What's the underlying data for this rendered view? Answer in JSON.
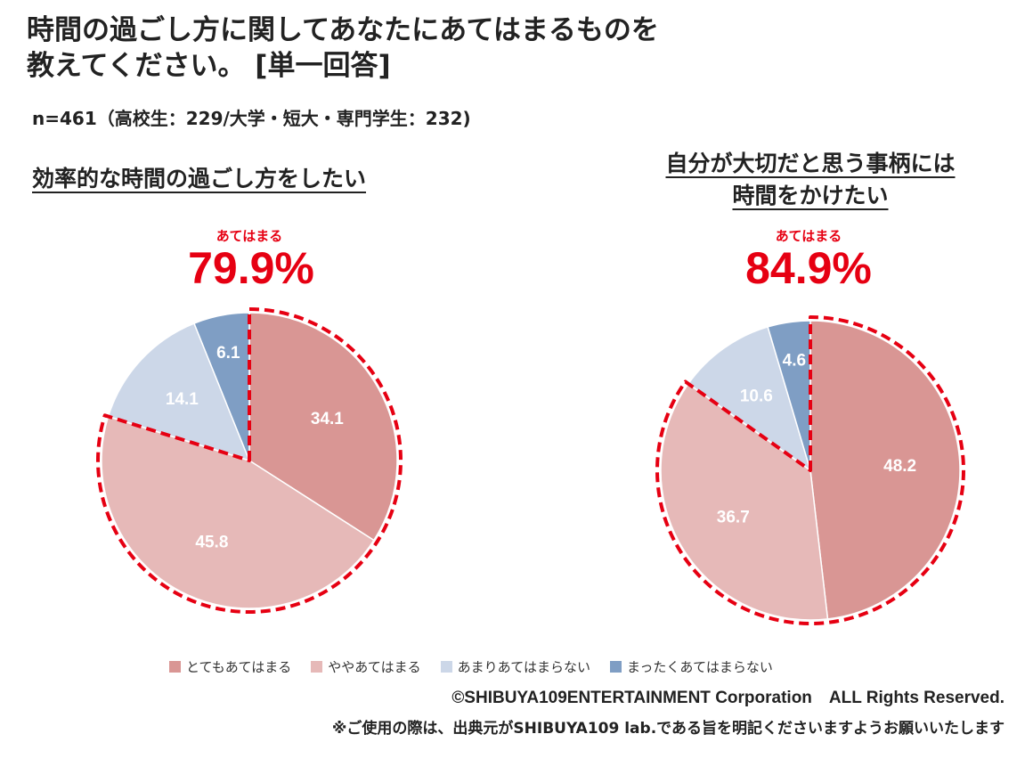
{
  "title": {
    "line1": "時間の過ごし方に関してあなたにあてはまるものを",
    "line2": "教えてください。 [単一回答]"
  },
  "sample": "n=461（高校生：229/大学・短大・専門学生：232)",
  "colors": {
    "strong": "#d99694",
    "somewhat": "#e6b9b8",
    "not_much": "#ccd7e8",
    "not_at_all": "#7f9ec4",
    "highlight": "#e60012"
  },
  "chart_data": [
    {
      "type": "pie",
      "title": "効率的な時間の過ごし方をしたい",
      "highlight_label": "あてはまる",
      "highlight_value": "79.9%",
      "categories": [
        "とてもあてはまる",
        "ややあてはまる",
        "あまりあてはまらない",
        "まったくあてはまらない"
      ],
      "values": [
        34.1,
        45.8,
        14.1,
        6.1
      ],
      "value_labels": [
        "34.1",
        "45.8",
        "14.1",
        "6.1"
      ]
    },
    {
      "type": "pie",
      "title_lines": [
        "自分が大切だと思う事柄には",
        "時間をかけたい"
      ],
      "highlight_label": "あてはまる",
      "highlight_value": "84.9%",
      "categories": [
        "とてもあてはまる",
        "ややあてはまる",
        "あまりあてはまらない",
        "まったくあてはまらない"
      ],
      "values": [
        48.2,
        36.7,
        10.6,
        4.6
      ],
      "value_labels": [
        "48.2",
        "36.7",
        "10.6",
        "4.6"
      ]
    }
  ],
  "legend": [
    "とてもあてはまる",
    "ややあてはまる",
    "あまりあてはまらない",
    "まったくあてはまらない"
  ],
  "copyright": "©SHIBUYA109ENTERTAINMENT Corporation　ALL Rights Reserved.",
  "note": "※ご使用の際は、出典元がSHIBUYA109 lab.である旨を明記くださいますようお願いいたします"
}
